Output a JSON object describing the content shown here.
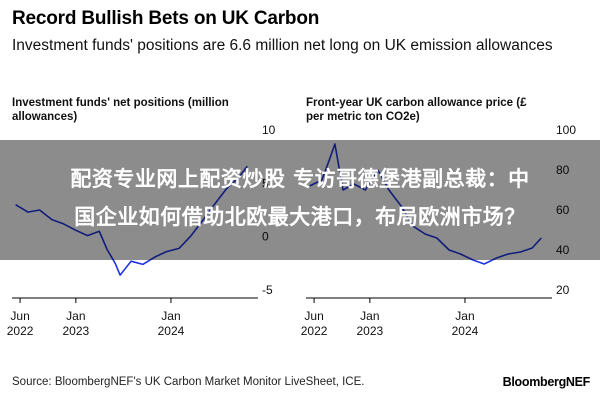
{
  "header": {
    "title": "Record Bullish Bets on UK Carbon",
    "subtitle": "Investment funds' positions are 6.6 million net long on UK emission allowances"
  },
  "overlay": {
    "line1": "配资专业网上配资炒股 专访哥德堡港副总裁：中",
    "line2": "国企业如何借助北欧最大港口，布局欧洲市场？"
  },
  "footer": {
    "source": "Source: BloombergNEF's UK Carbon Market Monitor LiveSheet, ICE.",
    "brand": "BloombergNEF"
  },
  "colors": {
    "line": "#1f35e0",
    "axis": "#000000",
    "text": "#111111"
  },
  "chart_data": [
    {
      "type": "line",
      "title": "Investment funds' net positions (million allowances)",
      "ylim": [
        -5,
        10
      ],
      "yticks": [
        "10",
        "5",
        "0",
        "-5"
      ],
      "xlim": [
        "2022-05-01",
        "2024-11-30"
      ],
      "xticks": [
        {
          "x": "2022-06-01",
          "line1": "Jun",
          "line2": "2022"
        },
        {
          "x": "2023-01-01",
          "line1": "Jan",
          "line2": "2023"
        },
        {
          "x": "2024-01-01",
          "line1": "Jan",
          "line2": "2024"
        }
      ],
      "series": [
        {
          "values": [
            {
              "x": "2022-05-15",
              "y": 3.0
            },
            {
              "x": "2022-07-01",
              "y": 2.3
            },
            {
              "x": "2022-08-15",
              "y": 2.5
            },
            {
              "x": "2022-10-01",
              "y": 1.6
            },
            {
              "x": "2022-11-15",
              "y": 1.2
            },
            {
              "x": "2023-01-01",
              "y": 0.6
            },
            {
              "x": "2023-02-15",
              "y": 0.1
            },
            {
              "x": "2023-04-01",
              "y": 0.5
            },
            {
              "x": "2023-05-01",
              "y": -1.2
            },
            {
              "x": "2023-06-01",
              "y": -2.5
            },
            {
              "x": "2023-06-20",
              "y": -3.6
            },
            {
              "x": "2023-08-01",
              "y": -2.3
            },
            {
              "x": "2023-09-15",
              "y": -2.6
            },
            {
              "x": "2023-11-01",
              "y": -1.9
            },
            {
              "x": "2023-12-15",
              "y": -1.4
            },
            {
              "x": "2024-02-01",
              "y": -1.1
            },
            {
              "x": "2024-03-15",
              "y": 0.0
            },
            {
              "x": "2024-05-01",
              "y": 1.5
            },
            {
              "x": "2024-06-15",
              "y": 3.0
            },
            {
              "x": "2024-08-01",
              "y": 4.5
            },
            {
              "x": "2024-09-15",
              "y": 5.5
            },
            {
              "x": "2024-10-20",
              "y": 6.6
            }
          ]
        }
      ]
    },
    {
      "type": "line",
      "title": "Front-year UK carbon allowance price (£ per metric ton CO2e)",
      "ylim": [
        20,
        100
      ],
      "yticks": [
        "100",
        "80",
        "60",
        "40",
        "20"
      ],
      "xlim": [
        "2022-05-01",
        "2024-11-30"
      ],
      "xticks": [
        {
          "x": "2022-06-01",
          "line1": "Jun",
          "line2": "2022"
        },
        {
          "x": "2023-01-01",
          "line1": "Jan",
          "line2": "2023"
        },
        {
          "x": "2024-01-01",
          "line1": "Jan",
          "line2": "2024"
        }
      ],
      "series": [
        {
          "values": [
            {
              "x": "2022-05-15",
              "y": 72
            },
            {
              "x": "2022-07-01",
              "y": 75
            },
            {
              "x": "2022-08-01",
              "y": 86
            },
            {
              "x": "2022-08-20",
              "y": 93
            },
            {
              "x": "2022-09-20",
              "y": 70
            },
            {
              "x": "2022-11-01",
              "y": 73
            },
            {
              "x": "2022-12-15",
              "y": 70
            },
            {
              "x": "2023-02-01",
              "y": 80
            },
            {
              "x": "2023-03-15",
              "y": 70
            },
            {
              "x": "2023-05-01",
              "y": 62
            },
            {
              "x": "2023-06-15",
              "y": 52
            },
            {
              "x": "2023-08-01",
              "y": 48
            },
            {
              "x": "2023-09-15",
              "y": 46
            },
            {
              "x": "2023-11-01",
              "y": 40
            },
            {
              "x": "2023-12-15",
              "y": 38
            },
            {
              "x": "2024-02-01",
              "y": 35
            },
            {
              "x": "2024-03-15",
              "y": 33
            },
            {
              "x": "2024-05-01",
              "y": 36
            },
            {
              "x": "2024-06-15",
              "y": 38
            },
            {
              "x": "2024-08-01",
              "y": 39
            },
            {
              "x": "2024-09-15",
              "y": 41
            },
            {
              "x": "2024-10-20",
              "y": 46
            }
          ]
        }
      ]
    }
  ]
}
